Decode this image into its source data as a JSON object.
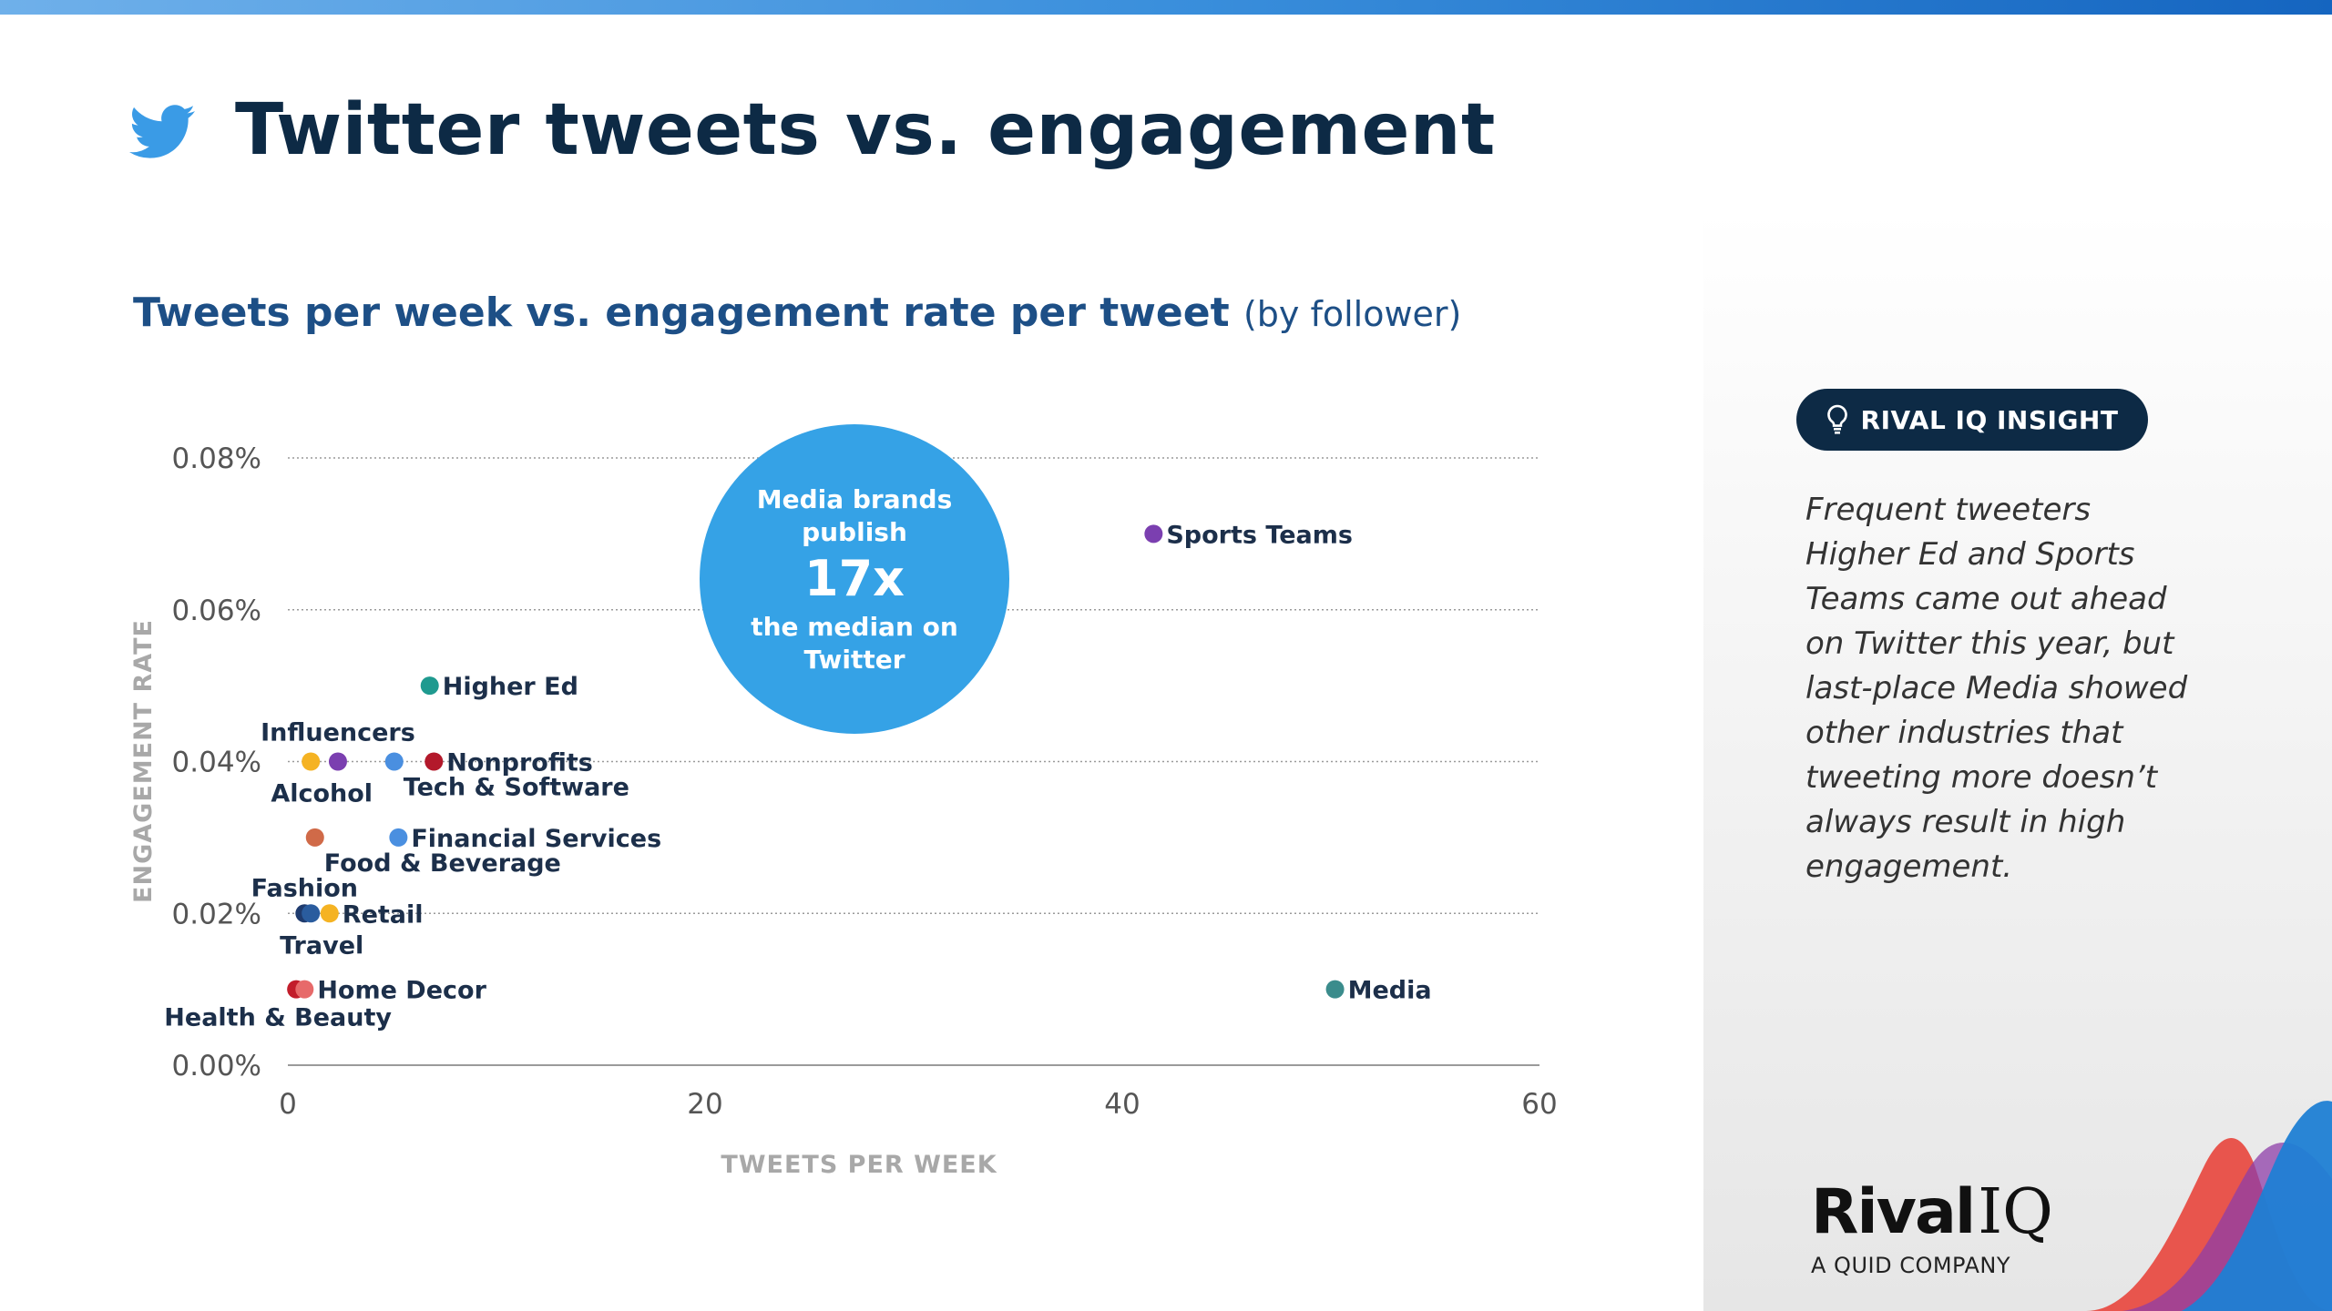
{
  "header": {
    "title": "Twitter tweets vs. engagement",
    "subtitle": "Tweets per week vs. engagement rate per tweet",
    "subtitle_note": "(by follower)"
  },
  "chart_data": {
    "type": "scatter",
    "title": "Tweets per week vs. engagement rate per tweet (by follower)",
    "xlabel": "TWEETS PER WEEK",
    "ylabel": "ENGAGEMENT RATE",
    "xlim": [
      0,
      60
    ],
    "ylim": [
      0,
      0.08
    ],
    "x_ticks": [
      {
        "value": 0,
        "label": "0"
      },
      {
        "value": 20,
        "label": "20"
      },
      {
        "value": 40,
        "label": "40"
      },
      {
        "value": 60,
        "label": "60"
      }
    ],
    "y_ticks": [
      {
        "value": 0,
        "label": "0.00%"
      },
      {
        "value": 0.02,
        "label": "0.02%"
      },
      {
        "value": 0.04,
        "label": "0.04%"
      },
      {
        "value": 0.06,
        "label": "0.06%"
      },
      {
        "value": 0.08,
        "label": "0.08%"
      }
    ],
    "points": [
      {
        "label": "Sports Teams",
        "x": 41.5,
        "y": 0.07,
        "color": "#7b3fb0",
        "label_pos": "right"
      },
      {
        "label": "Media",
        "x": 50.2,
        "y": 0.01,
        "color": "#3b8c8c",
        "label_pos": "right"
      },
      {
        "label": "Higher Ed",
        "x": 6.8,
        "y": 0.05,
        "color": "#1f9a8f",
        "label_pos": "right"
      },
      {
        "label": "Influencers",
        "x": 2.4,
        "y": 0.04,
        "color": "#7b3fb0",
        "label_pos": "above"
      },
      {
        "label": "Alcohol",
        "x": 1.1,
        "y": 0.04,
        "color": "#f5b323",
        "label_pos": "below"
      },
      {
        "label": "Tech & Software",
        "x": 5.1,
        "y": 0.04,
        "color": "#4a8fe0",
        "label_pos": "below-right"
      },
      {
        "label": "Nonprofits",
        "x": 7.0,
        "y": 0.04,
        "color": "#b3192b",
        "label_pos": "right"
      },
      {
        "label": "Food & Beverage",
        "x": 1.3,
        "y": 0.03,
        "color": "#d06a48",
        "label_pos": "below-right"
      },
      {
        "label": "Financial Services",
        "x": 5.3,
        "y": 0.03,
        "color": "#4a8fe0",
        "label_pos": "right"
      },
      {
        "label": "Fashion",
        "x": 0.8,
        "y": 0.02,
        "color": "#1f3b6e",
        "label_pos": "above"
      },
      {
        "label": "Travel",
        "x": 1.1,
        "y": 0.02,
        "color": "#2a5c9e",
        "label_pos": "below"
      },
      {
        "label": "Retail",
        "x": 2.0,
        "y": 0.02,
        "color": "#f5b323",
        "label_pos": "right"
      },
      {
        "label": "Health & Beauty",
        "x": 0.4,
        "y": 0.01,
        "color": "#c21d2b",
        "label_pos": "below"
      },
      {
        "label": "Home Decor",
        "x": 0.8,
        "y": 0.01,
        "color": "#e76a6a",
        "label_pos": "right"
      }
    ],
    "callout": {
      "line1": "Media brands",
      "line2": "publish",
      "value": "17x",
      "line3": "the median on",
      "line4": "Twitter",
      "color": "#35a2e6"
    },
    "colors": {
      "grid": "#9a9a9a",
      "axis": "#9a9a9a",
      "point_label": "#1c2f4a",
      "tick": "#555555"
    }
  },
  "insight": {
    "badge_label": "RIVAL IQ INSIGHT",
    "text": "Frequent tweeters Higher Ed and Sports Teams came out ahead on Twitter this year, but last-place Media showed other industries that tweeting more doesn’t always result in high engagement."
  },
  "logo": {
    "rival": "Rival",
    "iq": "IQ",
    "sub": "A QUID COMPANY"
  },
  "icons": {
    "header": "twitter-bird-icon",
    "badge": "lightbulb-icon"
  }
}
